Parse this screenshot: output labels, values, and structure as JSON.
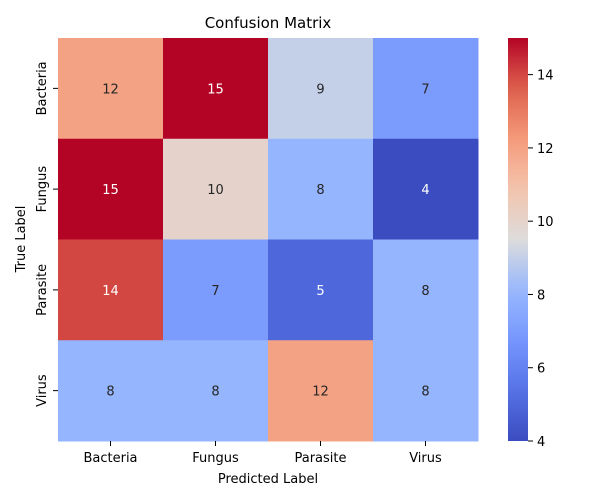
{
  "chart_data": {
    "type": "heatmap",
    "title": "Confusion Matrix",
    "xlabel": "Predicted Label",
    "ylabel": "True Label",
    "x_categories": [
      "Bacteria",
      "Fungus",
      "Parasite",
      "Virus"
    ],
    "y_categories": [
      "Bacteria",
      "Fungus",
      "Parasite",
      "Virus"
    ],
    "values": [
      [
        12,
        15,
        9,
        7
      ],
      [
        15,
        10,
        8,
        4
      ],
      [
        14,
        7,
        5,
        8
      ],
      [
        8,
        8,
        12,
        8
      ]
    ],
    "colormap": "coolwarm",
    "vmin": 4,
    "vmax": 15,
    "colorbar_ticks": [
      4,
      6,
      8,
      10,
      12,
      14
    ]
  }
}
